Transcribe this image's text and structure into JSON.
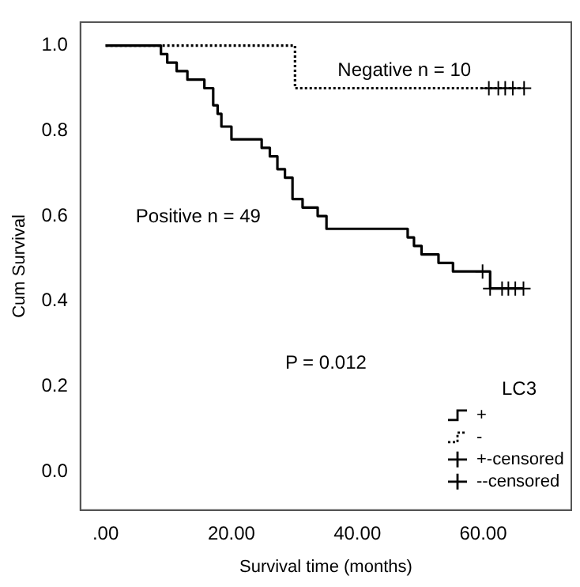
{
  "chart_data": {
    "type": "step",
    "xlabel": "Survival time (months)",
    "ylabel": "Cum Survival",
    "legend_title": "LC3",
    "legend": "bottom right",
    "grid": false,
    "xlim": [
      -4,
      74
    ],
    "xticks": [
      {
        "value": 0,
        "label": ".00"
      },
      {
        "value": 20,
        "label": "20.00"
      },
      {
        "value": 40,
        "label": "40.00"
      },
      {
        "value": 60,
        "label": "60.00"
      }
    ],
    "ylim": [
      -0.09,
      1.055
    ],
    "yticks": [
      {
        "value": 0,
        "label": "0.0"
      },
      {
        "value": 0.2,
        "label": "0.2"
      },
      {
        "value": 0.4,
        "label": "0.4"
      },
      {
        "value": 0.6,
        "label": "0.6"
      },
      {
        "value": 0.8,
        "label": "0.8"
      },
      {
        "value": 1,
        "label": "1.0"
      }
    ],
    "series": [
      {
        "name": "+",
        "color": "#000000",
        "line_style": "solid",
        "marker": "none",
        "x": [
          0,
          8.8,
          9.8,
          11.3,
          13,
          15.7,
          17.1,
          17.8,
          18.4,
          20,
          24.8,
          26.1,
          27.3,
          28.5,
          29.7,
          31.3,
          33.7,
          35.1,
          48,
          49,
          50.2,
          52.9,
          55.2,
          61.1,
          66.4
        ],
        "values": [
          1,
          0.98,
          0.96,
          0.94,
          0.92,
          0.9,
          0.86,
          0.84,
          0.81,
          0.78,
          0.76,
          0.74,
          0.71,
          0.69,
          0.64,
          0.62,
          0.6,
          0.57,
          0.55,
          0.53,
          0.51,
          0.49,
          0.47,
          0.43,
          0.43
        ]
      },
      {
        "name": "-",
        "color": "#000000",
        "line_style": "dotted",
        "marker": "none",
        "x": [
          0,
          30.1,
          66.5
        ],
        "values": [
          1,
          0.9,
          0.9
        ]
      },
      {
        "name": "+-censored",
        "type": "scatter",
        "color": "#000000",
        "marker": "cross",
        "x": [
          59.9,
          61.1,
          63,
          64,
          65.1,
          66.4
        ],
        "values": [
          0.47,
          0.43,
          0.43,
          0.43,
          0.43,
          0.43
        ]
      },
      {
        "name": "--censored",
        "type": "scatter",
        "color": "#000000",
        "marker": "cross",
        "x": [
          60.9,
          62.4,
          63.5,
          64.7,
          66.5
        ],
        "values": [
          0.9,
          0.9,
          0.9,
          0.9,
          0.9
        ]
      }
    ],
    "annotations": [
      "Negative n = 10",
      "Positive n = 49",
      "P = 0.012"
    ]
  }
}
